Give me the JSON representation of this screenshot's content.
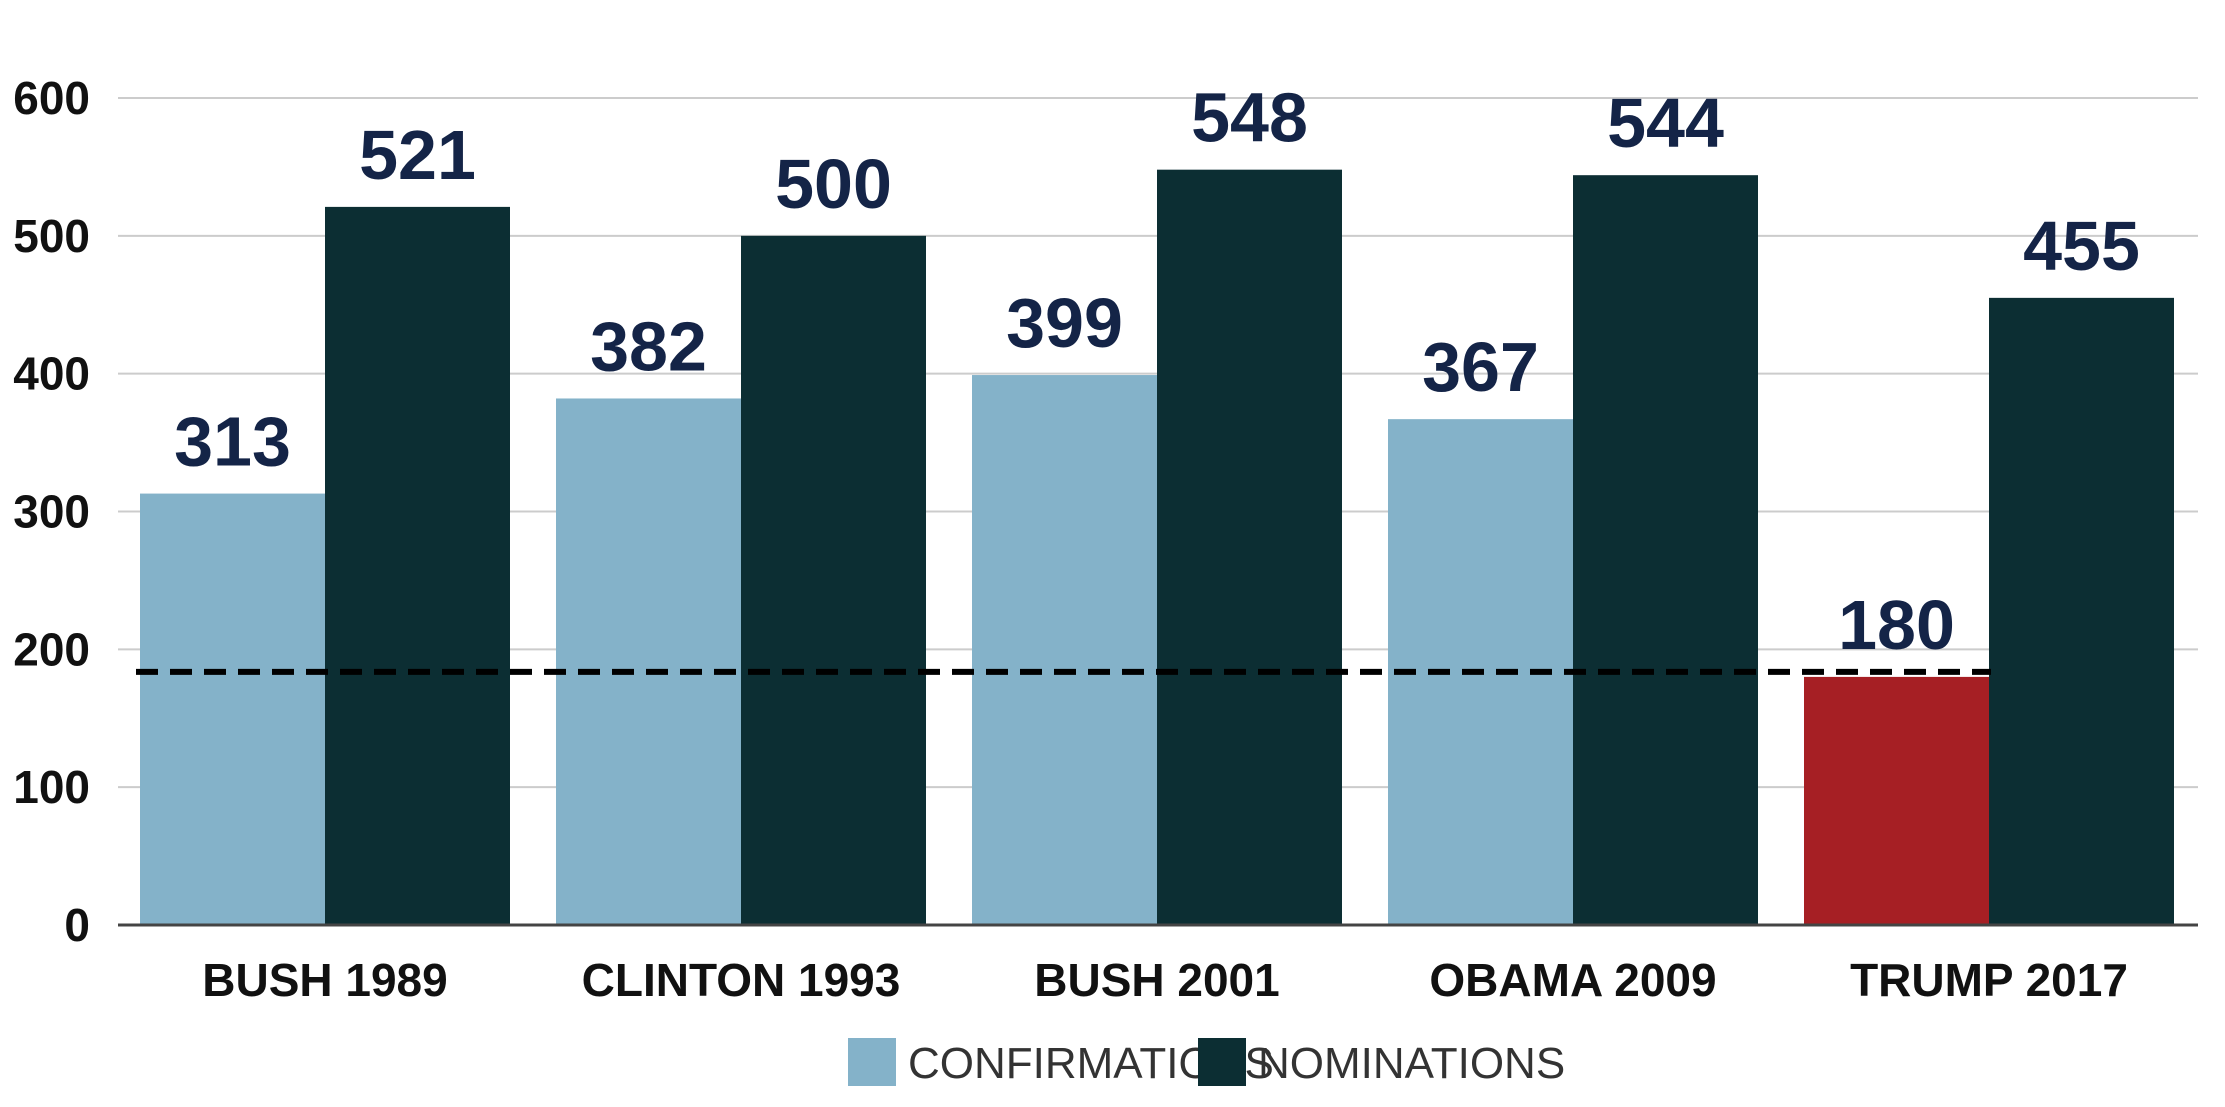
{
  "chart_data": {
    "type": "bar",
    "categories": [
      "BUSH 1989",
      "CLINTON 1993",
      "BUSH 2001",
      "OBAMA 2009",
      "TRUMP 2017"
    ],
    "series": [
      {
        "name": "CONFIRMATIONS",
        "color": "#84b2c9",
        "values": [
          313,
          382,
          399,
          367,
          180
        ]
      },
      {
        "name": "NOMINATIONS",
        "color": "#0c2e33",
        "values": [
          521,
          500,
          548,
          544,
          455
        ]
      }
    ],
    "highlight": {
      "category": "TRUMP 2017",
      "series": "CONFIRMATIONS",
      "color": "#a61f24"
    },
    "reference_line": {
      "value": 180,
      "style": "dashed",
      "color": "#000000"
    },
    "y_ticks": [
      0,
      100,
      200,
      300,
      400,
      500,
      600
    ],
    "ylim": [
      0,
      600
    ],
    "grid": true,
    "gridline_color": "#cccccc",
    "label_color": "#142447",
    "legend": {
      "placement": "bottom-center",
      "items": [
        "CONFIRMATIONS",
        "NOMINATIONS"
      ]
    },
    "title": "",
    "xlabel": "",
    "ylabel": ""
  }
}
